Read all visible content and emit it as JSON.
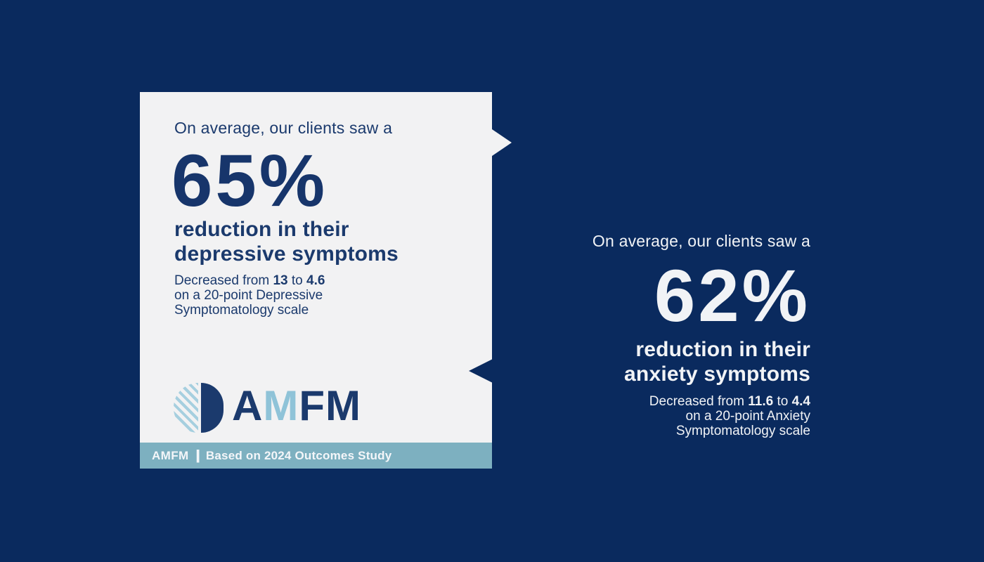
{
  "colors": {
    "background_navy": "#0a2a5e",
    "card_background": "#f2f2f3",
    "card_text_navy": "#1b3a6d",
    "white_text": "#f1f3f6",
    "footer_bar_blue": "#7db0c0",
    "logo_light_blue": "#8fc3d8",
    "logo_stripe_blue": "#a6cfdf"
  },
  "left_card": {
    "heading": "On average, our clients saw a",
    "stat_value": "65%",
    "subheading_line1": "reduction in their",
    "subheading_line2": "depressive symptoms",
    "detail": {
      "prefix": "Decreased from ",
      "from_value": "13",
      "connector": " to ",
      "to_value": "4.6",
      "line2": "on a 20-point Depressive",
      "line3": "Symptomatology scale"
    },
    "logo": {
      "letters": [
        "A",
        "M",
        "F",
        "M"
      ]
    },
    "footer": {
      "brand": "AMFM",
      "divider": "|",
      "text": "Based on 2024 Outcomes Study"
    }
  },
  "right_block": {
    "heading": "On average, our clients saw a",
    "stat_value": "62%",
    "subheading_line1": "reduction in their",
    "subheading_line2": "anxiety symptoms",
    "detail": {
      "prefix": "Decreased from ",
      "from_value": "11.6",
      "connector": " to ",
      "to_value": "4.4",
      "line2": "on a 20-point Anxiety",
      "line3": "Symptomatology scale"
    }
  }
}
